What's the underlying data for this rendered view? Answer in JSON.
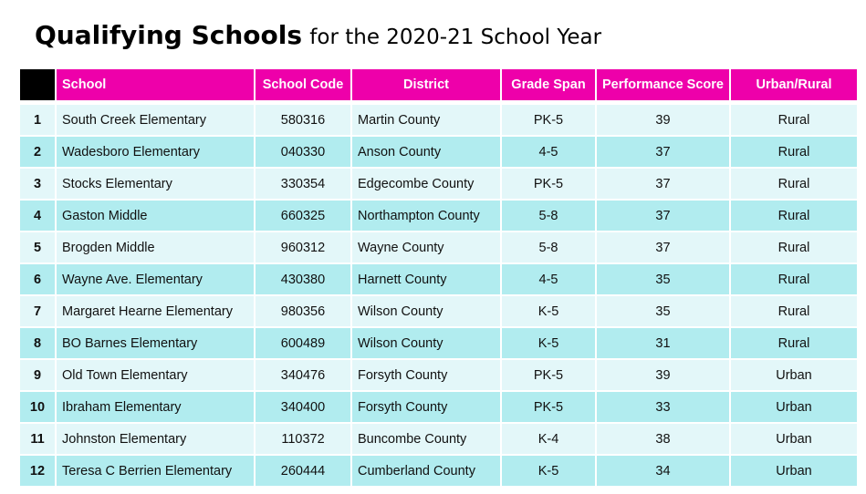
{
  "title": {
    "bold": "Qualifying Schools",
    "rest": "for the 2020-21 School Year"
  },
  "colors": {
    "header": "#ee00aa",
    "row_light": "#e3f7f9",
    "row_dark": "#b1ecef"
  },
  "columns": [
    "",
    "School",
    "School Code",
    "District",
    "Grade Span",
    "Performance Score",
    "Urban/Rural"
  ],
  "rows": [
    [
      "1",
      "South Creek Elementary",
      "580316",
      "Martin County",
      "PK-5",
      "39",
      "Rural"
    ],
    [
      "2",
      "Wadesboro Elementary",
      "040330",
      "Anson County",
      "4-5",
      "37",
      "Rural"
    ],
    [
      "3",
      "Stocks Elementary",
      "330354",
      "Edgecombe County",
      "PK-5",
      "37",
      "Rural"
    ],
    [
      "4",
      "Gaston Middle",
      "660325",
      "Northampton County",
      "5-8",
      "37",
      "Rural"
    ],
    [
      "5",
      "Brogden Middle",
      "960312",
      "Wayne County",
      "5-8",
      "37",
      "Rural"
    ],
    [
      "6",
      "Wayne Ave. Elementary",
      "430380",
      "Harnett County",
      "4-5",
      "35",
      "Rural"
    ],
    [
      "7",
      "Margaret Hearne Elementary",
      "980356",
      "Wilson County",
      "K-5",
      "35",
      "Rural"
    ],
    [
      "8",
      "BO Barnes Elementary",
      "600489",
      "Wilson County",
      "K-5",
      "31",
      "Rural"
    ],
    [
      "9",
      "Old Town Elementary",
      "340476",
      "Forsyth County",
      "PK-5",
      "39",
      "Urban"
    ],
    [
      "10",
      "Ibraham Elementary",
      "340400",
      "Forsyth County",
      "PK-5",
      "33",
      "Urban"
    ],
    [
      "11",
      "Johnston Elementary",
      "110372",
      "Buncombe County",
      "K-4",
      "38",
      "Urban"
    ],
    [
      "12",
      "Teresa C Berrien Elementary",
      "260444",
      "Cumberland County",
      "K-5",
      "34",
      "Urban"
    ]
  ]
}
